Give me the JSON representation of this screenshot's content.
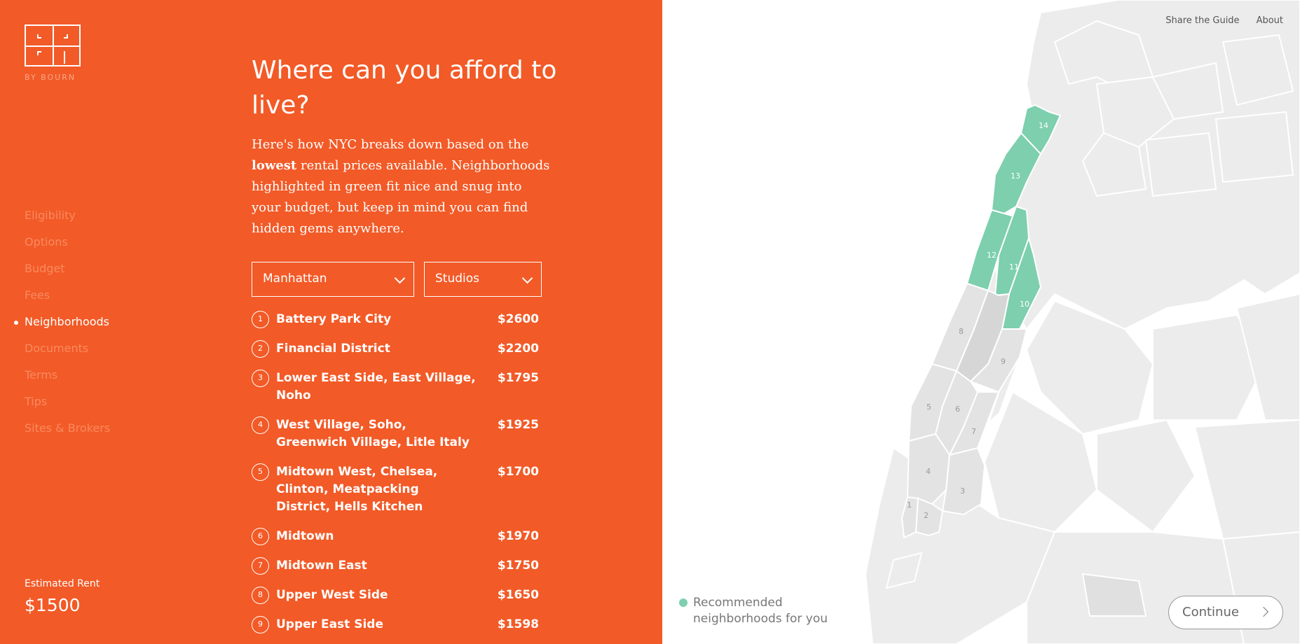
{
  "brand": {
    "name": "BY BOURN"
  },
  "nav": {
    "items": [
      {
        "label": "Eligibility"
      },
      {
        "label": "Options"
      },
      {
        "label": "Budget"
      },
      {
        "label": "Fees"
      },
      {
        "label": "Neighborhoods",
        "active": true
      },
      {
        "label": "Documents"
      },
      {
        "label": "Terms"
      },
      {
        "label": "Tips"
      },
      {
        "label": "Sites & Brokers"
      }
    ]
  },
  "rent": {
    "label": "Estimated Rent",
    "value": "$1500"
  },
  "main": {
    "headline": "Where can you afford to live?",
    "intro_before": "Here's how NYC breaks down based on the ",
    "intro_bold": "lowest",
    "intro_after": " rental prices available. Neighborhoods highlighted in green fit nice and snug into your budget, but keep in mind you can find hidden gems anywhere.",
    "borough_select": "Manhattan",
    "type_select": "Studios"
  },
  "neighborhoods": [
    {
      "num": "1",
      "name": "Battery Park City",
      "price": "$2600"
    },
    {
      "num": "2",
      "name": "Financial District",
      "price": "$2200"
    },
    {
      "num": "3",
      "name": "Lower East Side, East Village, Noho",
      "price": "$1795"
    },
    {
      "num": "4",
      "name": "West Village, Soho, Greenwich Village, Litle Italy",
      "price": "$1925"
    },
    {
      "num": "5",
      "name": "Midtown West, Chelsea, Clinton, Meatpacking District, Hells Kitchen",
      "price": "$1700"
    },
    {
      "num": "6",
      "name": "Midtown",
      "price": "$1970"
    },
    {
      "num": "7",
      "name": "Midtown East",
      "price": "$1750"
    },
    {
      "num": "8",
      "name": "Upper West Side",
      "price": "$1650"
    },
    {
      "num": "9",
      "name": "Upper East Side",
      "price": "$1598"
    }
  ],
  "top_links": {
    "share": "Share the Guide",
    "about": "About"
  },
  "legend": {
    "label": "Recommended neighborhoods for you"
  },
  "continue": {
    "label": "Continue"
  },
  "map_labels": [
    "1",
    "2",
    "3",
    "4",
    "5",
    "6",
    "7",
    "8",
    "9",
    "10",
    "11",
    "12",
    "13",
    "14"
  ],
  "colors": {
    "accent": "#f25a27",
    "recommended": "#7dcfae",
    "land": "#ececec"
  }
}
